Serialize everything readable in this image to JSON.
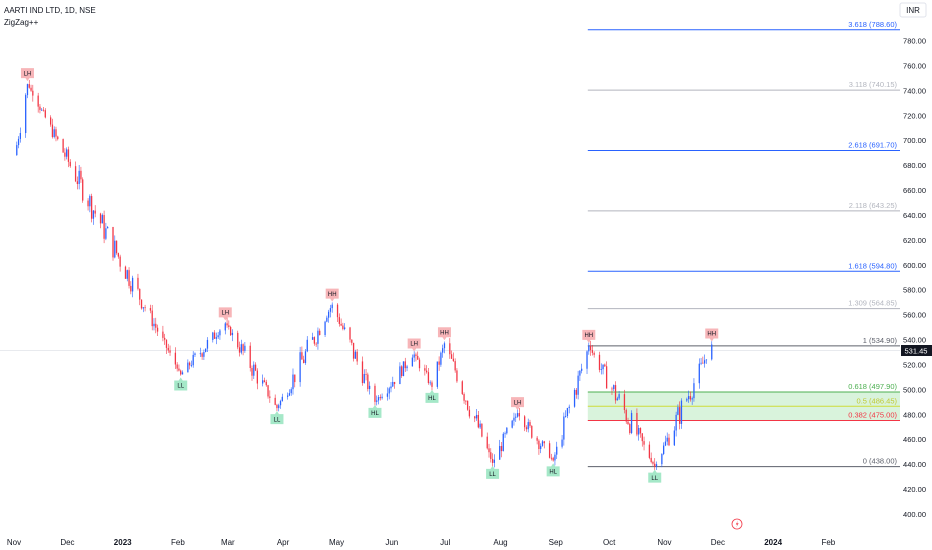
{
  "header": {
    "symbol": "AARTI IND LTD, 1D, NSE",
    "indicator": "ZigZag++"
  },
  "currency_button": "INR",
  "colors": {
    "up": "#2962ff",
    "down": "#f23645",
    "label_high_bg": "#f7b5b8",
    "label_low_bg": "#a5e8c8",
    "fib_blue": "#2962ff",
    "fib_gray": "#9598a1",
    "fib_618": "#4caf50",
    "fib_5": "#cddc39",
    "fib_382": "#f23645",
    "zone_fill": "#d9f3dc",
    "grid": "#ffffff",
    "text": "#131722"
  },
  "chart_data": {
    "type": "candlestick",
    "title": "AARTI IND LTD, 1D, NSE",
    "indicator": "ZigZag++",
    "ylim": [
      380,
      800
    ],
    "y_ticks": [
      400,
      420,
      440,
      460,
      480,
      500,
      520,
      540,
      560,
      580,
      600,
      620,
      640,
      660,
      680,
      700,
      720,
      740,
      760,
      780
    ],
    "y_tick_labels": [
      "400.00",
      "420.00",
      "440.00",
      "460.00",
      "480.00",
      "500.00",
      "520.00",
      "540.00",
      "560.00",
      "580.00",
      "600.00",
      "620.00",
      "640.00",
      "660.00",
      "680.00",
      "700.00",
      "720.00",
      "740.00",
      "760.00",
      "780.00"
    ],
    "x_labels": [
      "Nov",
      "Dec",
      "2023",
      "Feb",
      "Mar",
      "Apr",
      "May",
      "Jun",
      "Jul",
      "Aug",
      "Sep",
      "Oct",
      "Nov",
      "Dec",
      "2024",
      "Feb"
    ],
    "last_price": "531.45",
    "zigzag_points": [
      {
        "label": "LH",
        "date": "2022-11-08",
        "price": 745
      },
      {
        "label": "LL",
        "date": "2023-02-02",
        "price": 512
      },
      {
        "label": "LH",
        "date": "2023-02-27",
        "price": 553
      },
      {
        "label": "LL",
        "date": "2023-03-28",
        "price": 485
      },
      {
        "label": "HH",
        "date": "2023-04-28",
        "price": 568
      },
      {
        "label": "HL",
        "date": "2023-05-22",
        "price": 490
      },
      {
        "label": "LH",
        "date": "2023-06-13",
        "price": 528
      },
      {
        "label": "HL",
        "date": "2023-06-23",
        "price": 502
      },
      {
        "label": "HH",
        "date": "2023-06-30",
        "price": 537
      },
      {
        "label": "LL",
        "date": "2023-07-27",
        "price": 441
      },
      {
        "label": "LH",
        "date": "2023-08-10",
        "price": 481
      },
      {
        "label": "HL",
        "date": "2023-08-30",
        "price": 443
      },
      {
        "label": "HH",
        "date": "2023-09-19",
        "price": 534.9
      },
      {
        "label": "LL",
        "date": "2023-10-26",
        "price": 438
      },
      {
        "label": "HH",
        "date": "2023-11-27",
        "price": 536
      }
    ],
    "fib_levels": [
      {
        "ratio": "3.618",
        "price": 788.6,
        "label": "3.618 (788.60)",
        "style": "blue"
      },
      {
        "ratio": "3.118",
        "price": 740.15,
        "label": "3.118 (740.15)",
        "style": "gray"
      },
      {
        "ratio": "2.618",
        "price": 691.7,
        "label": "2.618 (691.70)",
        "style": "blue"
      },
      {
        "ratio": "2.118",
        "price": 643.25,
        "label": "2.118 (643.25)",
        "style": "gray"
      },
      {
        "ratio": "1.618",
        "price": 594.8,
        "label": "1.618 (594.80)",
        "style": "blue"
      },
      {
        "ratio": "1.309",
        "price": 564.85,
        "label": "1.309 (564.85)",
        "style": "gray"
      },
      {
        "ratio": "1",
        "price": 534.9,
        "label": "1 (534.90)",
        "style": "dark"
      },
      {
        "ratio": "0.618",
        "price": 497.9,
        "label": "0.618 (497.90)",
        "style": "green"
      },
      {
        "ratio": "0.5",
        "price": 486.45,
        "label": "0.5 (486.45)",
        "style": "yellow"
      },
      {
        "ratio": "0.382",
        "price": 475.0,
        "label": "0.382 (475.00)",
        "style": "red"
      },
      {
        "ratio": "0",
        "price": 438.0,
        "label": "0 (438.00)",
        "style": "dark"
      }
    ],
    "fib_start_date": "2023-09-19",
    "grid": false,
    "legend": "none"
  }
}
